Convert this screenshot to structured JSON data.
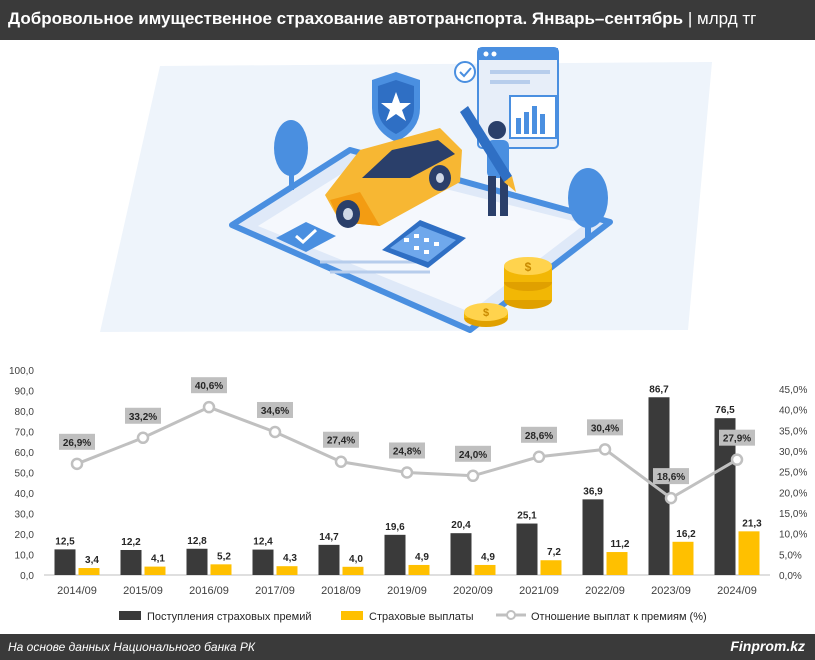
{
  "header": {
    "title": "Добровольное имущественное страхование автотранспорта. Январь–сентябрь",
    "separator": "|",
    "unit": "млрд тг"
  },
  "chart_data": {
    "type": "bar",
    "categories": [
      "2014/09",
      "2015/09",
      "2016/09",
      "2017/09",
      "2018/09",
      "2019/09",
      "2020/09",
      "2021/09",
      "2022/09",
      "2023/09",
      "2024/09"
    ],
    "series": [
      {
        "name": "Поступления страховых премий",
        "type": "bar",
        "axis": "left",
        "color": "#3a3a3a",
        "values": [
          12.5,
          12.2,
          12.8,
          12.4,
          14.7,
          19.6,
          20.4,
          25.1,
          36.9,
          86.7,
          76.5
        ],
        "labels": [
          "12,5",
          "12,2",
          "12,8",
          "12,4",
          "14,7",
          "19,6",
          "20,4",
          "25,1",
          "36,9",
          "86,7",
          "76,5"
        ]
      },
      {
        "name": "Страховые выплаты",
        "type": "bar",
        "axis": "left",
        "color": "#ffc000",
        "values": [
          3.4,
          4.1,
          5.2,
          4.3,
          4.0,
          4.9,
          4.9,
          7.2,
          11.2,
          16.2,
          21.3
        ],
        "labels": [
          "3,4",
          "4,1",
          "5,2",
          "4,3",
          "4,0",
          "4,9",
          "4,9",
          "7,2",
          "11,2",
          "16,2",
          "21,3"
        ]
      },
      {
        "name": "Отношение выплат к премиям (%)",
        "type": "line",
        "axis": "right",
        "color": "#c0c0c0",
        "values": [
          26.9,
          33.2,
          40.6,
          34.6,
          27.4,
          24.8,
          24.0,
          28.6,
          30.4,
          18.6,
          27.9
        ],
        "labels": [
          "26,9%",
          "33,2%",
          "40,6%",
          "34,6%",
          "27,4%",
          "24,8%",
          "24,0%",
          "28,6%",
          "30,4%",
          "18,6%",
          "27,9%"
        ]
      }
    ],
    "ylim": [
      0,
      100
    ],
    "y2lim": [
      0,
      45
    ],
    "yticks": [
      "0,0",
      "10,0",
      "20,0",
      "30,0",
      "40,0",
      "50,0",
      "60,0",
      "70,0",
      "80,0",
      "90,0",
      "100,0"
    ],
    "y2ticks": [
      "0,0%",
      "5,0%",
      "10,0%",
      "15,0%",
      "20,0%",
      "25,0%",
      "30,0%",
      "35,0%",
      "40,0%",
      "45,0%"
    ],
    "grid": false,
    "legend_position": "bottom"
  },
  "footer": {
    "source": "На основе данных Национального банка РК",
    "brand": "Finprom.kz"
  },
  "colors": {
    "dark_bar": "#3a3a3a",
    "yellow_bar": "#ffc000",
    "line": "#c0c0c0",
    "label_box": "#bfbfbf",
    "header_bg": "#3a3a3a",
    "illustration_bg": "#eef4fb",
    "illustration_blue": "#4a8fe0",
    "car_yellow": "#f7b733"
  }
}
